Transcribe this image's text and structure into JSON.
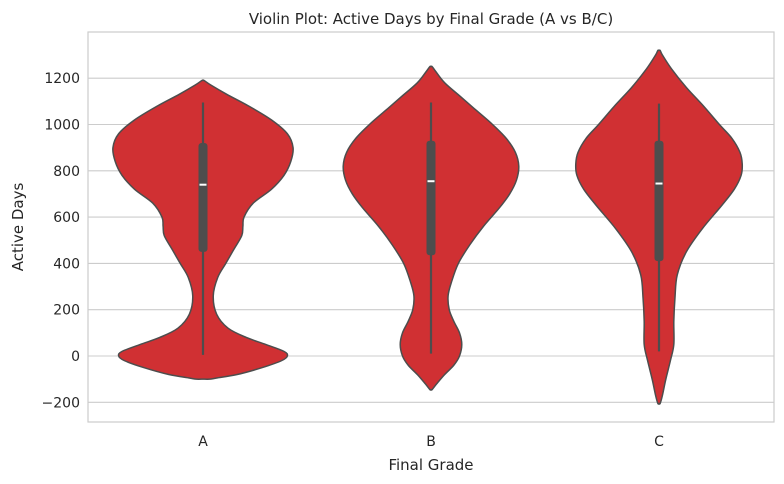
{
  "chart_data": {
    "type": "violin",
    "title": "Violin Plot: Active Days by Final Grade (A vs B/C)",
    "xlabel": "Final Grade",
    "ylabel": "Active Days",
    "categories": [
      "A",
      "B",
      "C"
    ],
    "ylim": [
      -280,
      1380
    ],
    "yticks": [
      -200,
      0,
      200,
      400,
      600,
      800,
      1000,
      1200
    ],
    "ytick_labels": [
      "−200",
      "0",
      "200",
      "400",
      "600",
      "800",
      "1000",
      "1200"
    ],
    "grid": true,
    "colors": {
      "fill": "#d03033",
      "edge": "#4d4d4d",
      "box": "#4d4d4d",
      "median": "#ffffff",
      "grid": "#cccccc",
      "axes": "#cccccc"
    },
    "violins": [
      {
        "category": "A",
        "profile": [
          [
            -100,
            0.06
          ],
          [
            -95,
            0.12
          ],
          [
            -80,
            0.3
          ],
          [
            -50,
            0.52
          ],
          [
            -20,
            0.69
          ],
          [
            0,
            0.74
          ],
          [
            20,
            0.71
          ],
          [
            50,
            0.55
          ],
          [
            80,
            0.38
          ],
          [
            120,
            0.22
          ],
          [
            180,
            0.12
          ],
          [
            260,
            0.09
          ],
          [
            340,
            0.13
          ],
          [
            400,
            0.2
          ],
          [
            460,
            0.27
          ],
          [
            520,
            0.34
          ],
          [
            560,
            0.35
          ],
          [
            600,
            0.36
          ],
          [
            660,
            0.44
          ],
          [
            720,
            0.6
          ],
          [
            780,
            0.71
          ],
          [
            840,
            0.77
          ],
          [
            900,
            0.79
          ],
          [
            960,
            0.74
          ],
          [
            1020,
            0.6
          ],
          [
            1080,
            0.4
          ],
          [
            1130,
            0.21
          ],
          [
            1170,
            0.07
          ],
          [
            1190,
            0.01
          ]
        ],
        "whisker_low": 5,
        "q1": 450,
        "median": 740,
        "q3": 920,
        "whisker_high": 1095
      },
      {
        "category": "B",
        "profile": [
          [
            -145,
            0.01
          ],
          [
            -120,
            0.05
          ],
          [
            -80,
            0.12
          ],
          [
            -40,
            0.2
          ],
          [
            0,
            0.25
          ],
          [
            50,
            0.27
          ],
          [
            100,
            0.25
          ],
          [
            150,
            0.2
          ],
          [
            200,
            0.16
          ],
          [
            260,
            0.15
          ],
          [
            320,
            0.18
          ],
          [
            400,
            0.24
          ],
          [
            480,
            0.34
          ],
          [
            560,
            0.46
          ],
          [
            640,
            0.6
          ],
          [
            700,
            0.69
          ],
          [
            760,
            0.75
          ],
          [
            820,
            0.77
          ],
          [
            880,
            0.74
          ],
          [
            940,
            0.66
          ],
          [
            1000,
            0.54
          ],
          [
            1060,
            0.4
          ],
          [
            1120,
            0.26
          ],
          [
            1180,
            0.12
          ],
          [
            1230,
            0.04
          ],
          [
            1250,
            0.01
          ]
        ],
        "whisker_low": 10,
        "q1": 435,
        "median": 755,
        "q3": 930,
        "whisker_high": 1095
      },
      {
        "category": "C",
        "profile": [
          [
            -205,
            0.01
          ],
          [
            -170,
            0.03
          ],
          [
            -100,
            0.06
          ],
          [
            -20,
            0.1
          ],
          [
            50,
            0.13
          ],
          [
            150,
            0.13
          ],
          [
            250,
            0.14
          ],
          [
            350,
            0.16
          ],
          [
            450,
            0.24
          ],
          [
            550,
            0.38
          ],
          [
            650,
            0.55
          ],
          [
            720,
            0.66
          ],
          [
            780,
            0.72
          ],
          [
            830,
            0.73
          ],
          [
            880,
            0.71
          ],
          [
            940,
            0.64
          ],
          [
            1000,
            0.53
          ],
          [
            1080,
            0.39
          ],
          [
            1160,
            0.24
          ],
          [
            1240,
            0.11
          ],
          [
            1300,
            0.03
          ],
          [
            1320,
            0.01
          ]
        ],
        "whisker_low": 20,
        "q1": 410,
        "median": 745,
        "q3": 930,
        "whisker_high": 1090
      }
    ]
  }
}
